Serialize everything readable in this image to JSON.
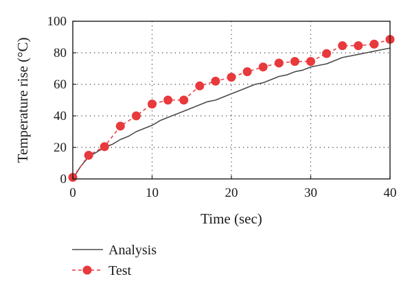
{
  "chart_data": {
    "type": "line",
    "title": "",
    "xlabel": "Time (sec)",
    "ylabel": "Temperature rise (°C)",
    "xlim": [
      0,
      40
    ],
    "ylim": [
      0,
      100
    ],
    "xticks": [
      0,
      10,
      20,
      30,
      40
    ],
    "yticks": [
      0,
      20,
      40,
      60,
      80,
      100
    ],
    "grid": true,
    "legend_position": "bottom-left",
    "series": [
      {
        "name": "Analysis",
        "style": "solid-line",
        "color": "#4a4a4a",
        "x": [
          0,
          1,
          2,
          3,
          4,
          5,
          6,
          7,
          8,
          9,
          10,
          11,
          12,
          13,
          14,
          15,
          16,
          17,
          18,
          19,
          20,
          21,
          22,
          23,
          24,
          25,
          26,
          27,
          28,
          29,
          30,
          31,
          32,
          33,
          34,
          35,
          36,
          37,
          38,
          39,
          40
        ],
        "y": [
          0,
          8,
          14,
          17,
          20,
          22,
          25,
          27,
          30,
          32,
          34,
          37,
          39,
          41,
          43,
          45,
          47,
          49,
          50,
          52,
          54,
          56,
          58,
          60,
          61,
          63,
          65,
          66,
          68,
          69,
          71,
          72,
          73,
          75,
          77,
          78,
          79,
          80,
          81,
          82,
          83
        ]
      },
      {
        "name": "Test",
        "style": "dashed-line-with-circles",
        "color": "#e8393c",
        "x": [
          0,
          2,
          4,
          6,
          8,
          10,
          12,
          14,
          16,
          18,
          20,
          22,
          24,
          26,
          28,
          30,
          32,
          34,
          36,
          38,
          40
        ],
        "y": [
          1,
          15,
          20.5,
          33.5,
          40,
          47.5,
          50,
          50,
          59,
          62,
          64.5,
          68,
          71,
          73.5,
          74.5,
          74.5,
          79.5,
          84.5,
          84.5,
          85.5,
          88.5
        ]
      }
    ]
  }
}
